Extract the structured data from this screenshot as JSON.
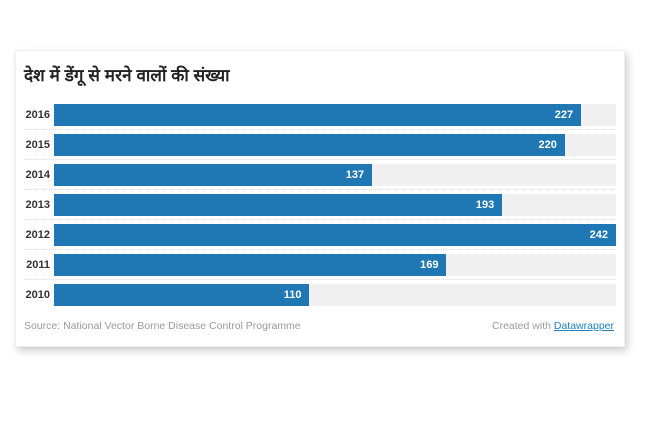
{
  "chart": {
    "title": "देश में डेंगू से मरने वालों की संख्या"
  },
  "chart_data": {
    "type": "bar",
    "orientation": "horizontal",
    "title": "देश में डेंगू से मरने वालों की संख्या",
    "categories": [
      "2016",
      "2015",
      "2014",
      "2013",
      "2012",
      "2011",
      "2010"
    ],
    "values": [
      227,
      220,
      137,
      193,
      242,
      169,
      110
    ],
    "xlabel": "",
    "ylabel": "",
    "xlim": [
      0,
      242
    ],
    "grid": "off",
    "legend": "none",
    "value_labels": "inside-end-white",
    "bar_color": "#1f77b4",
    "track_color": "#f0f0f0"
  },
  "footer": {
    "source": "Source: National Vector Borne Disease Control Programme",
    "credit_prefix": "Created with",
    "credit_link": "Datawrapper"
  },
  "colors": {
    "bar": "#1f77b4",
    "track": "#f0f0f0",
    "link": "#1d81c0",
    "title_text": "#222222",
    "label_text": "#333333",
    "footer_text": "#9a9a9a"
  }
}
